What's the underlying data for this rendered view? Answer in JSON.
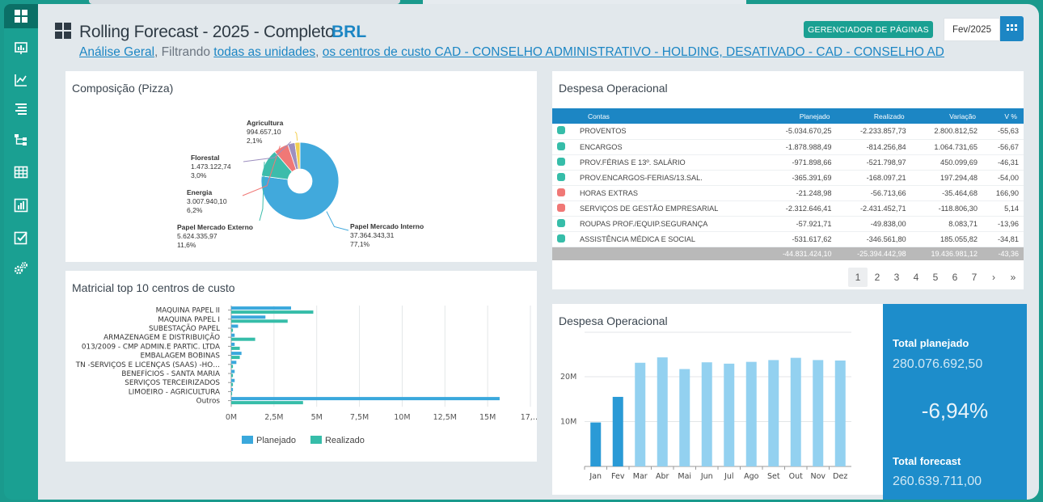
{
  "header": {
    "title": "Rolling Forecast - 2025 - Completo",
    "currency": "BRL",
    "filter": {
      "link1": "Análise Geral",
      "sep1": ",",
      "text1": " Filtrando ",
      "link2": "todas as unidades",
      "sep2": ",",
      "link3": "os centros de custo CAD - CONSELHO ADMINISTRATIVO - HOLDING, DESATIVADO - CAD - CONSELHO ADMINIST…"
    },
    "page_manager_label": "GERENCIADOR DE PÁGINAS",
    "period": "Fev/2025"
  },
  "sidebar": {
    "items": [
      "dashboard-icon",
      "presentation-icon",
      "line-chart-icon",
      "list-icon",
      "hierarchy-icon",
      "table-icon",
      "bar-report-icon",
      "checkbox-icon",
      "settings-icon"
    ]
  },
  "pie": {
    "title": "Composição (Pizza)",
    "slices": [
      {
        "name": "Papel Mercado Interno",
        "value": "37.364.343,31",
        "pct": "77,1%",
        "share": 77.1,
        "color": "#41a9dc"
      },
      {
        "name": "Papel Mercado Externo",
        "value": "5.624.335,97",
        "pct": "11,6%",
        "share": 11.6,
        "color": "#3dbcab"
      },
      {
        "name": "Energia",
        "value": "3.007.940,10",
        "pct": "6,2%",
        "share": 6.2,
        "color": "#f07876"
      },
      {
        "name": "Florestal",
        "value": "1.473.122,74",
        "pct": "3,0%",
        "share": 3.0,
        "color": "#9d8fbf"
      },
      {
        "name": "Agricultura",
        "value": "994.657,10",
        "pct": "2,1%",
        "share": 2.1,
        "color": "#f3cf4f"
      }
    ]
  },
  "matrix": {
    "title": "Matricial top 10 centros de custo",
    "legend": {
      "planned": "Planejado",
      "actual": "Realizado"
    },
    "colors": {
      "planned": "#3aa8dc",
      "actual": "#36bda9"
    },
    "chart_data": {
      "type": "bar",
      "orientation": "horizontal",
      "categories": [
        "MAQUINA PAPEL II",
        "MAQUINA PAPEL I",
        "SUBESTAÇÃO PAPEL",
        "ARMAZENAGEM E DISTRIBUIÇÃO",
        "013/2009 - CMP ADMIN.E PARTIC. LTDA",
        "EMBALAGEM BOBINAS",
        "TN -SERVIÇOS E LICENÇAS (SAAS) -HO…",
        "BENEFÍCIOS - SANTA MARIA",
        "SERVIÇOS TERCEIRIZADOS",
        "LIMOEIRO - AGRICULTURA",
        "Outros"
      ],
      "series": [
        {
          "name": "Planejado",
          "values": [
            3.5,
            2.0,
            0.4,
            0.2,
            0.2,
            0.6,
            0.3,
            0.2,
            0.2,
            0.1,
            15.7
          ]
        },
        {
          "name": "Realizado",
          "values": [
            4.8,
            3.3,
            0.1,
            1.4,
            0.5,
            0.5,
            0.1,
            0.1,
            0.1,
            0.05,
            4.2
          ]
        }
      ],
      "xticks": [
        "0M",
        "2,5M",
        "5M",
        "7,5M",
        "10M",
        "12,5M",
        "15M",
        "17,…"
      ],
      "xlim": [
        0,
        17.5
      ]
    }
  },
  "table": {
    "title": "Despesa Operacional",
    "columns": [
      "Contas",
      "Planejado",
      "Realizado",
      "Variação",
      "V %"
    ],
    "rows": [
      {
        "color": "#36bda9",
        "name": "PROVENTOS",
        "planned": "-5.034.670,25",
        "actual": "-2.233.857,73",
        "var": "2.800.812,52",
        "pct": "-55,63"
      },
      {
        "color": "#36bda9",
        "name": "ENCARGOS",
        "planned": "-1.878.988,49",
        "actual": "-814.256,84",
        "var": "1.064.731,65",
        "pct": "-56,67"
      },
      {
        "color": "#36bda9",
        "name": "PROV.FÉRIAS E 13º. SALÁRIO",
        "planned": "-971.898,66",
        "actual": "-521.798,97",
        "var": "450.099,69",
        "pct": "-46,31"
      },
      {
        "color": "#36bda9",
        "name": "PROV.ENCARGOS-FERIAS/13.SAL.",
        "planned": "-365.391,69",
        "actual": "-168.097,21",
        "var": "197.294,48",
        "pct": "-54,00"
      },
      {
        "color": "#f07876",
        "name": "HORAS EXTRAS",
        "planned": "-21.248,98",
        "actual": "-56.713,66",
        "var": "-35.464,68",
        "pct": "166,90"
      },
      {
        "color": "#f07876",
        "name": "SERVIÇOS DE GESTÃO EMPRESARIAL",
        "planned": "-2.312.646,41",
        "actual": "-2.431.452,71",
        "var": "-118.806,30",
        "pct": "5,14"
      },
      {
        "color": "#36bda9",
        "name": "ROUPAS PROF./EQUIP.SEGURANÇA",
        "planned": "-57.921,71",
        "actual": "-49.838,00",
        "var": "8.083,71",
        "pct": "-13,96"
      },
      {
        "color": "#36bda9",
        "name": "ASSISTÊNCIA MÉDICA E SOCIAL",
        "planned": "-531.617,62",
        "actual": "-346.561,80",
        "var": "185.055,82",
        "pct": "-34,81"
      }
    ],
    "totals": {
      "planned": "-44.831.424,10",
      "actual": "-25.394.442,98",
      "var": "19.436.981,12",
      "pct": "-43,36"
    },
    "pages": [
      "1",
      "2",
      "3",
      "4",
      "5",
      "6",
      "7"
    ],
    "current_page": "1",
    "next": "›",
    "last": "»"
  },
  "columns_chart": {
    "title": "Despesa Operacional",
    "chart_data": {
      "type": "bar",
      "categories": [
        "Jan",
        "Fev",
        "Mar",
        "Abr",
        "Mai",
        "Jun",
        "Jul",
        "Ago",
        "Set",
        "Out",
        "Nov",
        "Dez"
      ],
      "values": [
        9.8,
        15.5,
        23.1,
        24.3,
        21.7,
        23.2,
        22.9,
        23.3,
        23.7,
        24.2,
        23.7,
        23.6
      ],
      "actual_months": 2,
      "yticks": [
        {
          "v": 10,
          "label": "10M"
        },
        {
          "v": 20,
          "label": "20M"
        }
      ],
      "ylim": [
        0,
        29
      ]
    },
    "colors": {
      "actual": "#2a9ad6",
      "forecast": "#93d1f0"
    }
  },
  "totals": {
    "planned_label": "Total planejado",
    "planned_value": "280.076.692,50",
    "variation": "-6,94%",
    "forecast_label": "Total forecast",
    "forecast_value": "260.639.711,00"
  }
}
